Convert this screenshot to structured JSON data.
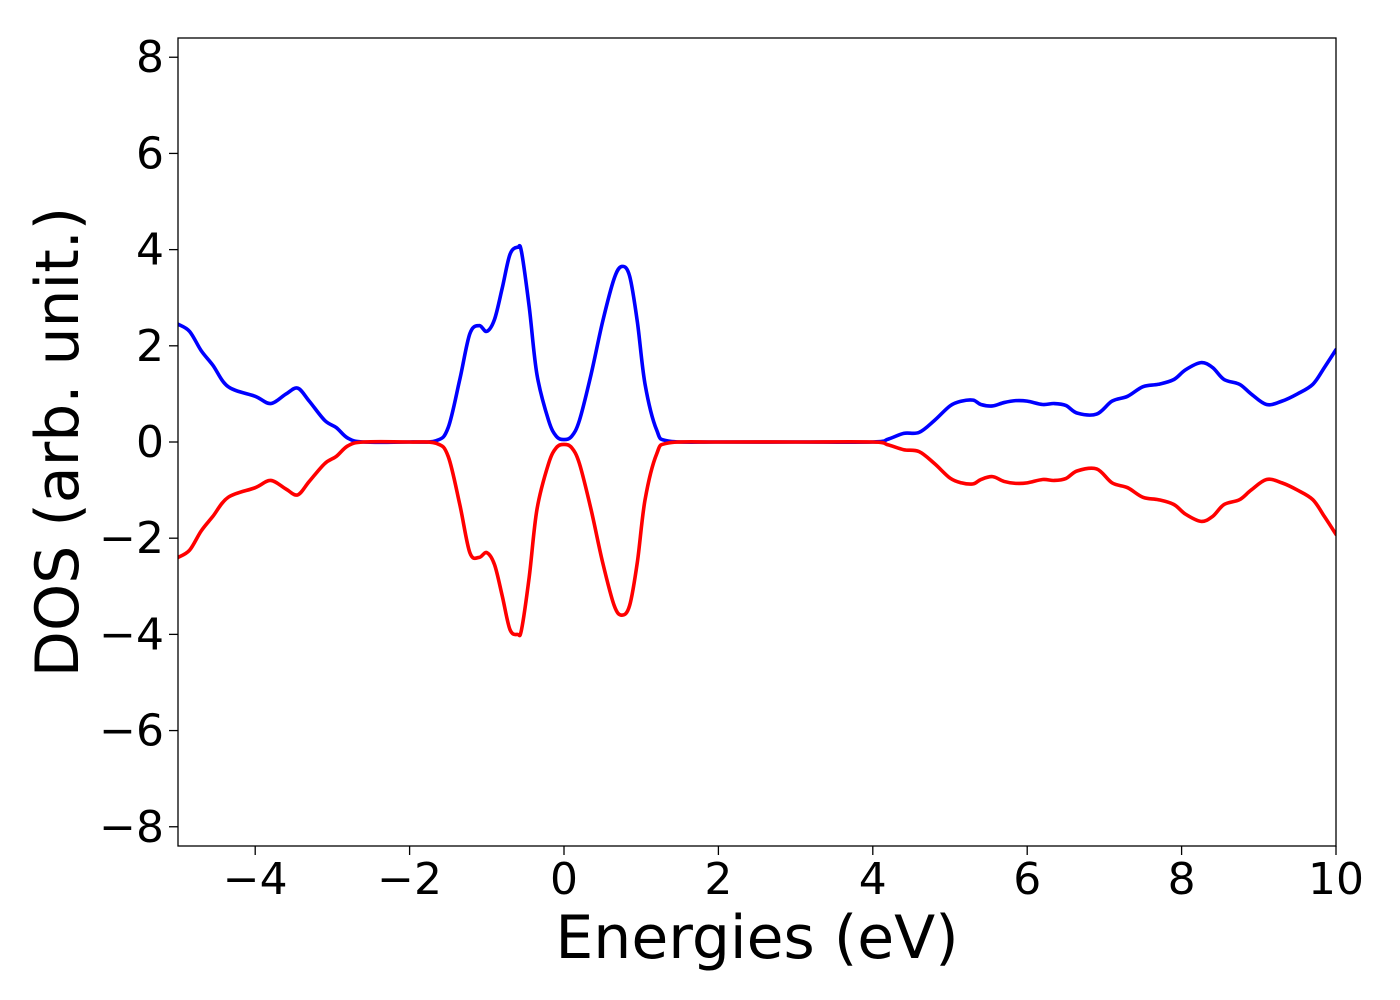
{
  "chart_data": {
    "type": "line",
    "title": "",
    "xlabel": "Energies (eV)",
    "ylabel": "DOS (arb. unit.)",
    "xlim": [
      -5,
      10
    ],
    "ylim": [
      -8.4,
      8.4
    ],
    "x_ticks": [
      -4,
      -2,
      0,
      2,
      4,
      6,
      8,
      10
    ],
    "x_tick_labels": [
      "−4",
      "−2",
      "0",
      "2",
      "4",
      "6",
      "8",
      "10"
    ],
    "y_ticks": [
      -8,
      -6,
      -4,
      -2,
      0,
      2,
      4,
      6,
      8
    ],
    "y_tick_labels": [
      "−8",
      "−6",
      "−4",
      "−2",
      "0",
      "2",
      "4",
      "6",
      "8"
    ],
    "grid": false,
    "legend": "none",
    "colors": {
      "up": "#0000ff",
      "down": "#ff0000"
    },
    "x": [
      -5.0,
      -4.85,
      -4.7,
      -4.55,
      -4.35,
      -4.0,
      -3.8,
      -3.6,
      -3.45,
      -3.3,
      -3.1,
      -2.95,
      -2.8,
      -2.6,
      -2.0,
      -1.65,
      -1.5,
      -1.35,
      -1.22,
      -1.1,
      -1.0,
      -0.9,
      -0.8,
      -0.7,
      -0.6,
      -0.55,
      -0.45,
      -0.35,
      -0.2,
      -0.1,
      0.0,
      0.1,
      0.2,
      0.35,
      0.5,
      0.65,
      0.75,
      0.85,
      0.95,
      1.05,
      1.2,
      1.35,
      2.0,
      3.0,
      4.0,
      4.2,
      4.4,
      4.6,
      4.8,
      5.0,
      5.15,
      5.3,
      5.4,
      5.55,
      5.7,
      5.85,
      6.0,
      6.2,
      6.35,
      6.5,
      6.65,
      6.9,
      7.1,
      7.3,
      7.5,
      7.7,
      7.9,
      8.05,
      8.25,
      8.4,
      8.55,
      8.75,
      8.9,
      9.1,
      9.3,
      9.5,
      9.7,
      9.85,
      10.0
    ],
    "series": [
      {
        "key": "up",
        "values": [
          2.45,
          2.3,
          1.9,
          1.6,
          1.15,
          0.95,
          0.8,
          1.0,
          1.12,
          0.85,
          0.45,
          0.3,
          0.08,
          0.0,
          0.0,
          0.03,
          0.3,
          1.3,
          2.25,
          2.42,
          2.3,
          2.55,
          3.2,
          3.9,
          4.05,
          3.95,
          2.8,
          1.4,
          0.45,
          0.12,
          0.05,
          0.12,
          0.45,
          1.4,
          2.5,
          3.4,
          3.65,
          3.45,
          2.5,
          1.2,
          0.25,
          0.02,
          0.0,
          0.0,
          0.0,
          0.06,
          0.18,
          0.2,
          0.45,
          0.75,
          0.85,
          0.87,
          0.78,
          0.75,
          0.82,
          0.86,
          0.85,
          0.78,
          0.8,
          0.76,
          0.6,
          0.58,
          0.85,
          0.95,
          1.15,
          1.2,
          1.3,
          1.5,
          1.65,
          1.55,
          1.3,
          1.2,
          1.0,
          0.78,
          0.85,
          1.0,
          1.2,
          1.55,
          1.92
        ]
      },
      {
        "key": "down",
        "values": [
          -2.4,
          -2.25,
          -1.85,
          -1.55,
          -1.15,
          -0.95,
          -0.8,
          -0.98,
          -1.1,
          -0.82,
          -0.45,
          -0.3,
          -0.08,
          0.0,
          0.0,
          -0.03,
          -0.3,
          -1.3,
          -2.3,
          -2.4,
          -2.3,
          -2.55,
          -3.2,
          -3.9,
          -4.0,
          -3.9,
          -2.8,
          -1.4,
          -0.45,
          -0.12,
          -0.05,
          -0.12,
          -0.45,
          -1.4,
          -2.5,
          -3.4,
          -3.6,
          -3.4,
          -2.5,
          -1.2,
          -0.25,
          -0.02,
          0.0,
          0.0,
          0.0,
          -0.06,
          -0.16,
          -0.2,
          -0.45,
          -0.75,
          -0.85,
          -0.87,
          -0.78,
          -0.72,
          -0.82,
          -0.86,
          -0.85,
          -0.78,
          -0.8,
          -0.76,
          -0.6,
          -0.56,
          -0.85,
          -0.95,
          -1.15,
          -1.2,
          -1.3,
          -1.5,
          -1.65,
          -1.55,
          -1.3,
          -1.2,
          -1.0,
          -0.78,
          -0.85,
          -1.0,
          -1.2,
          -1.55,
          -1.92
        ]
      }
    ]
  }
}
